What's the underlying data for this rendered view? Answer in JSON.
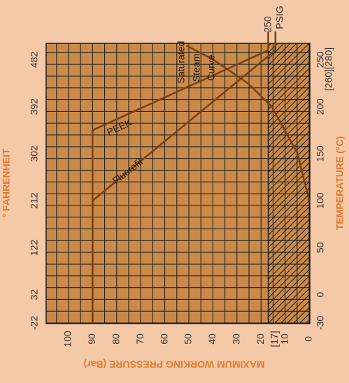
{
  "chart_data": {
    "type": "line",
    "colors": {
      "background": "#f4c9a7",
      "plot": "#c98a4a",
      "grid": "#1a1a1a",
      "line": "#7a4010",
      "title": "#e07a2e",
      "text": "#333333"
    },
    "pressure_axis": {
      "title": "MAXIMUM WORKING PRESSURE (Bar)",
      "ticks": [
        {
          "value": 100,
          "label": "100"
        },
        {
          "value": 90,
          "label": "90"
        },
        {
          "value": 80,
          "label": "80"
        },
        {
          "value": 70,
          "label": "70"
        },
        {
          "value": 60,
          "label": "60"
        },
        {
          "value": 50,
          "label": "50"
        },
        {
          "value": 40,
          "label": "40"
        },
        {
          "value": 30,
          "label": "30"
        },
        {
          "value": 20,
          "label": "20"
        },
        {
          "value": 10,
          "label": "10"
        },
        {
          "value": 0,
          "label": "0"
        }
      ],
      "extra_label": {
        "value": 17,
        "label": "[17]"
      },
      "range": [
        0,
        100
      ]
    },
    "celsius_axis": {
      "title": "TEMPERATURE (°C)",
      "ticks": [
        {
          "value": -30,
          "label": "-30"
        },
        {
          "value": 0,
          "label": "0"
        },
        {
          "value": 50,
          "label": "50"
        },
        {
          "value": 100,
          "label": "100"
        },
        {
          "value": 150,
          "label": "150"
        },
        {
          "value": 200,
          "label": "200"
        },
        {
          "value": 250,
          "label": "250"
        }
      ],
      "extra_label": "[260][280]",
      "range": [
        -30,
        280
      ]
    },
    "fahrenheit_axis": {
      "title": "° FAHRENHEIT",
      "ticks": [
        {
          "value": -22,
          "label": "-22"
        },
        {
          "value": 32,
          "label": "32"
        },
        {
          "value": 122,
          "label": "122"
        },
        {
          "value": 212,
          "label": "212"
        },
        {
          "value": 302,
          "label": "302"
        },
        {
          "value": 392,
          "label": "392"
        },
        {
          "value": 482,
          "label": "482"
        }
      ]
    },
    "psig_label": {
      "line1": "250",
      "line2": "PSIG",
      "pressure": 17
    },
    "series": [
      {
        "name": "PEEK",
        "points": [
          {
            "temp": -30,
            "pressure": 90
          },
          {
            "temp": 175,
            "pressure": 90
          },
          {
            "temp": 260,
            "pressure": 17
          },
          {
            "temp": 280,
            "pressure": 17
          }
        ]
      },
      {
        "name": "Fluorofil",
        "points": [
          {
            "temp": -30,
            "pressure": 90
          },
          {
            "temp": 100,
            "pressure": 90
          },
          {
            "temp": 260,
            "pressure": 14
          },
          {
            "temp": 280,
            "pressure": 14
          }
        ]
      }
    ],
    "steam_curve": {
      "line1": "Saturated",
      "line2": "Steam",
      "line3": "Curve",
      "points": [
        {
          "temp": 100,
          "pressure": 0
        },
        {
          "temp": 150,
          "pressure": 4.8
        },
        {
          "temp": 200,
          "pressure": 15.5
        },
        {
          "temp": 225,
          "pressure": 25.5
        },
        {
          "temp": 250,
          "pressure": 39.8
        },
        {
          "temp": 265,
          "pressure": 51
        }
      ]
    },
    "hatched_region": {
      "pressure_max": 17,
      "temp_min": -30
    }
  }
}
